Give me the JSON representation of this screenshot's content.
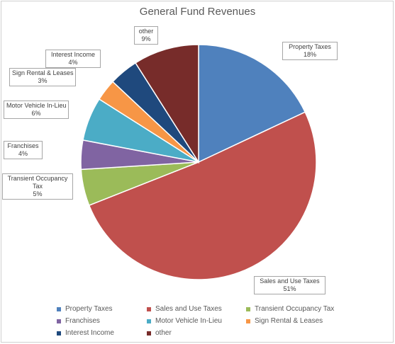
{
  "chart_data": {
    "type": "pie",
    "title": "General Fund Revenues",
    "slices": [
      {
        "name": "Property Taxes",
        "value": 18,
        "label": "18%",
        "color": "#4f81bd"
      },
      {
        "name": "Sales and Use Taxes",
        "value": 51,
        "label": "51%",
        "color": "#c0504d"
      },
      {
        "name": "Transient Occupancy Tax",
        "value": 5,
        "label": "5%",
        "color": "#9bbb59"
      },
      {
        "name": "Franchises",
        "value": 4,
        "label": "4%",
        "color": "#8064a2"
      },
      {
        "name": "Motor Vehicle In-Lieu",
        "value": 6,
        "label": "6%",
        "color": "#4bacc6"
      },
      {
        "name": "Sign Rental & Leases",
        "value": 3,
        "label": "3%",
        "color": "#f79646"
      },
      {
        "name": "Interest Income",
        "value": 4,
        "label": "4%",
        "color": "#1f497d"
      },
      {
        "name": "other",
        "value": 9,
        "label": "9%",
        "color": "#772c2a"
      }
    ],
    "callout_names": {
      "transient": [
        "Transient Occupancy",
        "Tax"
      ]
    },
    "legend_position": "bottom"
  }
}
